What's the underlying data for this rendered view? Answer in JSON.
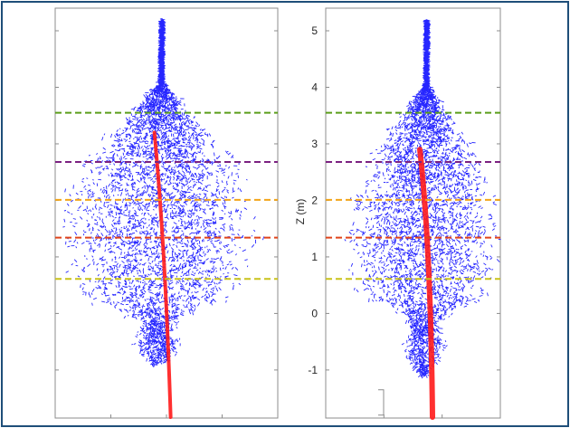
{
  "chart_data": [
    {
      "type": "scatter",
      "panel": "left",
      "description_series": [
        {
          "name": "",
          "color": "#0000ff"
        },
        {
          "name": "",
          "color": "#ff0000"
        }
      ],
      "ylim": [
        -1.85,
        5.4
      ],
      "yticks": [],
      "height_lines": [
        {
          "z": 3.55,
          "color": "#5a9e1a"
        },
        {
          "z": 2.68,
          "color": "#7b2181"
        },
        {
          "z": 2.01,
          "color": "#f2a51a"
        },
        {
          "z": 1.34,
          "color": "#e0441a"
        },
        {
          "z": 0.61,
          "color": "#c9c21a"
        }
      ]
    },
    {
      "type": "scatter",
      "panel": "right",
      "ylabel": "Z (m)",
      "ylim": [
        -1.85,
        5.4
      ],
      "yticks": [
        5,
        4,
        3,
        2,
        1,
        0,
        -1
      ],
      "height_lines": [
        {
          "z": 3.55,
          "color": "#5a9e1a"
        },
        {
          "z": 2.68,
          "color": "#7b2181"
        },
        {
          "z": 2.01,
          "color": "#f2a51a"
        },
        {
          "z": 1.34,
          "color": "#e0441a"
        },
        {
          "z": 0.61,
          "color": "#c9c21a"
        }
      ]
    }
  ],
  "colors": {
    "canopy": "#0000ff",
    "stem": "#ff1a1a",
    "frame": "#1f4e79"
  }
}
